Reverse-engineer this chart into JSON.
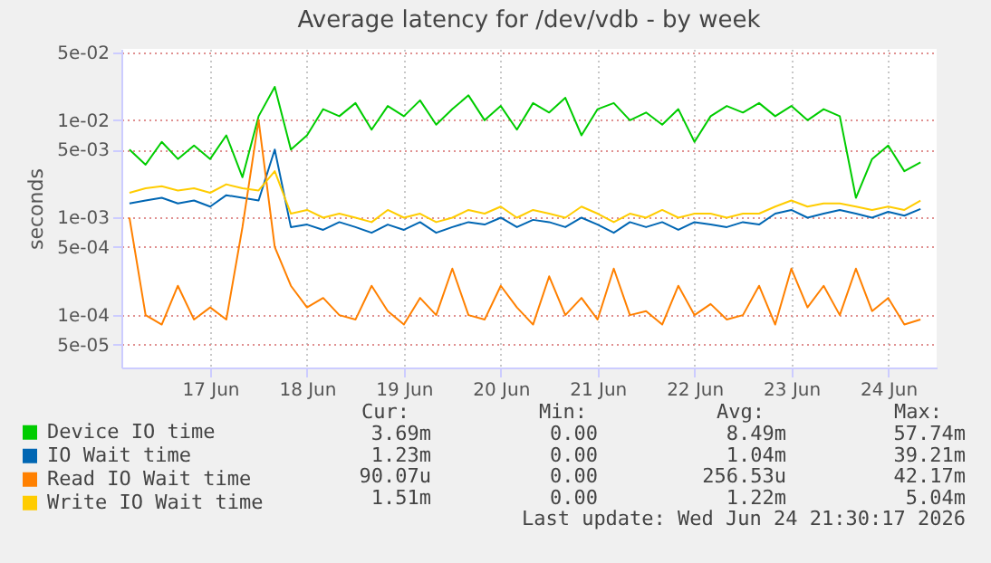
{
  "chart_data": {
    "type": "line",
    "title": "Average latency for /dev/vdb - by week",
    "ylabel": "seconds",
    "log": "y",
    "grid": true,
    "legend": "bottom left",
    "marker": "none",
    "line_style": "solid",
    "x": [
      "2026-06-16T16:00",
      "2026-06-16T20:00",
      "2026-06-17T00:00",
      "2026-06-17T04:00",
      "2026-06-17T08:00",
      "2026-06-17T12:00",
      "2026-06-17T16:00",
      "2026-06-17T20:00",
      "2026-06-18T00:00",
      "2026-06-18T04:00",
      "2026-06-18T08:00",
      "2026-06-18T12:00",
      "2026-06-18T16:00",
      "2026-06-18T20:00",
      "2026-06-19T00:00",
      "2026-06-19T04:00",
      "2026-06-19T08:00",
      "2026-06-19T12:00",
      "2026-06-19T16:00",
      "2026-06-19T20:00",
      "2026-06-20T00:00",
      "2026-06-20T04:00",
      "2026-06-20T08:00",
      "2026-06-20T12:00",
      "2026-06-20T16:00",
      "2026-06-20T20:00",
      "2026-06-21T00:00",
      "2026-06-21T04:00",
      "2026-06-21T08:00",
      "2026-06-21T12:00",
      "2026-06-21T16:00",
      "2026-06-21T20:00",
      "2026-06-22T00:00",
      "2026-06-22T04:00",
      "2026-06-22T08:00",
      "2026-06-22T12:00",
      "2026-06-22T16:00",
      "2026-06-22T20:00",
      "2026-06-23T00:00",
      "2026-06-23T04:00",
      "2026-06-23T08:00",
      "2026-06-23T12:00",
      "2026-06-23T16:00",
      "2026-06-23T20:00",
      "2026-06-24T00:00",
      "2026-06-24T04:00",
      "2026-06-24T08:00",
      "2026-06-24T12:00",
      "2026-06-24T16:00",
      "2026-06-24T20:00"
    ],
    "xlim": [
      "2026-06-16T14:00",
      "2026-06-25T00:00"
    ],
    "xticks": [
      {
        "value": "2026-06-17T12:00",
        "label": "17 Jun"
      },
      {
        "value": "2026-06-18T12:00",
        "label": "18 Jun"
      },
      {
        "value": "2026-06-19T12:00",
        "label": "19 Jun"
      },
      {
        "value": "2026-06-20T12:00",
        "label": "20 Jun"
      },
      {
        "value": "2026-06-21T12:00",
        "label": "21 Jun"
      },
      {
        "value": "2026-06-22T12:00",
        "label": "22 Jun"
      },
      {
        "value": "2026-06-23T12:00",
        "label": "23 Jun"
      },
      {
        "value": "2026-06-24T12:00",
        "label": "24 Jun"
      }
    ],
    "ylim": [
      2.9e-05,
      0.054
    ],
    "yticks": [
      {
        "value": 5e-05,
        "label": "5e-05"
      },
      {
        "value": 0.0001,
        "label": "1e-04"
      },
      {
        "value": 0.0005,
        "label": "5e-04"
      },
      {
        "value": 0.001,
        "label": "1e-03"
      },
      {
        "value": 0.005,
        "label": "5e-03"
      },
      {
        "value": 0.01,
        "label": "1e-02"
      },
      {
        "value": 0.05,
        "label": "5e-02"
      }
    ],
    "series": [
      {
        "name": "Device IO time",
        "color": "#00cc00",
        "values": [
          0.005,
          0.0035,
          0.006,
          0.004,
          0.0055,
          0.004,
          0.007,
          0.0026,
          0.011,
          0.022,
          0.005,
          0.007,
          0.013,
          0.011,
          0.015,
          0.008,
          0.014,
          0.011,
          0.016,
          0.009,
          0.013,
          0.018,
          0.01,
          0.014,
          0.008,
          0.015,
          0.012,
          0.017,
          0.007,
          0.013,
          0.015,
          0.01,
          0.012,
          0.009,
          0.013,
          0.006,
          0.011,
          0.014,
          0.012,
          0.015,
          0.011,
          0.014,
          0.01,
          0.013,
          0.011,
          0.0016,
          0.004,
          0.0055,
          0.003,
          0.0037
        ]
      },
      {
        "name": "IO Wait time",
        "color": "#0066b3",
        "values": [
          0.0014,
          0.0015,
          0.0016,
          0.0014,
          0.0015,
          0.0013,
          0.0017,
          0.0016,
          0.0015,
          0.005,
          0.0008,
          0.00085,
          0.00075,
          0.0009,
          0.0008,
          0.0007,
          0.00085,
          0.00075,
          0.0009,
          0.0007,
          0.0008,
          0.0009,
          0.00085,
          0.001,
          0.0008,
          0.00095,
          0.0009,
          0.0008,
          0.001,
          0.00085,
          0.0007,
          0.0009,
          0.0008,
          0.0009,
          0.00075,
          0.0009,
          0.00085,
          0.0008,
          0.0009,
          0.00085,
          0.0011,
          0.0012,
          0.001,
          0.0011,
          0.0012,
          0.0011,
          0.001,
          0.00115,
          0.00105,
          0.00123
        ]
      },
      {
        "name": "Read IO Wait time",
        "color": "#ff8000",
        "values": [
          0.001,
          0.0001,
          8e-05,
          0.0002,
          9e-05,
          0.00012,
          9e-05,
          0.0008,
          0.01,
          0.0005,
          0.0002,
          0.00012,
          0.00015,
          0.0001,
          9e-05,
          0.0002,
          0.00011,
          8e-05,
          0.00015,
          0.0001,
          0.0003,
          0.0001,
          9e-05,
          0.0002,
          0.00012,
          8e-05,
          0.00025,
          0.0001,
          0.00015,
          9e-05,
          0.0003,
          0.0001,
          0.00011,
          8e-05,
          0.0002,
          0.0001,
          0.00013,
          9e-05,
          0.0001,
          0.0002,
          8e-05,
          0.0003,
          0.00012,
          0.0002,
          0.0001,
          0.0003,
          0.00011,
          0.00015,
          8e-05,
          9e-05
        ]
      },
      {
        "name": "Write IO Wait time",
        "color": "#ffcc00",
        "values": [
          0.0018,
          0.002,
          0.0021,
          0.0019,
          0.002,
          0.0018,
          0.0022,
          0.002,
          0.0019,
          0.003,
          0.0011,
          0.0012,
          0.001,
          0.0011,
          0.001,
          0.0009,
          0.0012,
          0.001,
          0.0011,
          0.0009,
          0.001,
          0.0012,
          0.0011,
          0.0013,
          0.001,
          0.0012,
          0.0011,
          0.001,
          0.0013,
          0.0011,
          0.0009,
          0.0011,
          0.001,
          0.0012,
          0.001,
          0.0011,
          0.0011,
          0.001,
          0.0011,
          0.0011,
          0.0013,
          0.0015,
          0.0013,
          0.0014,
          0.0014,
          0.0013,
          0.0012,
          0.0013,
          0.0012,
          0.0015
        ]
      }
    ],
    "annotations": [
      "Cur:",
      "Min:",
      "Avg:",
      "Max:",
      "3.69m",
      "0.00",
      "8.49m",
      "57.74m",
      "1.23m",
      "0.00",
      "1.04m",
      "39.21m",
      "90.07u",
      "0.00",
      "256.53u",
      "42.17m",
      "1.51m",
      "0.00",
      "1.22m",
      "5.04m",
      "Last update: Wed Jun 24 21:30:17 2026"
    ]
  }
}
